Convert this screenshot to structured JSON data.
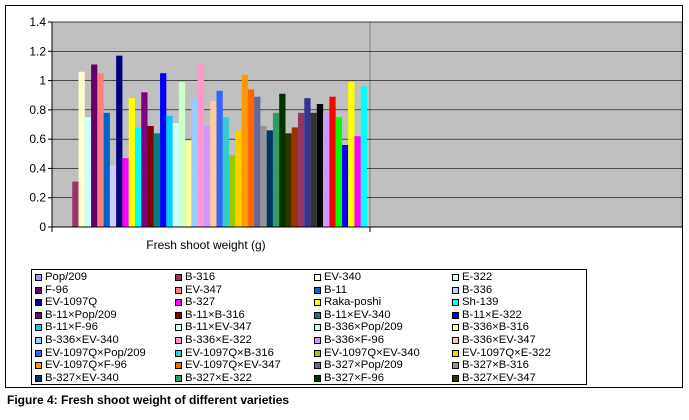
{
  "caption": "Figure 4: Fresh shoot weight of different varieties",
  "chart_data": {
    "type": "bar",
    "title": "",
    "xlabel": "Fresh shoot weight (g)",
    "ylabel": "",
    "categories": [
      "Fresh shoot weight (g)"
    ],
    "ylim": [
      0,
      1.4
    ],
    "yticks": [
      "0",
      "0.2",
      "0.4",
      "0.6",
      "0.8",
      "1",
      "1.2",
      "1.4"
    ],
    "grid": true,
    "legend_position": "bottom",
    "plot_background": "#c0c0c0",
    "series": [
      {
        "name": "Pop/209",
        "value": 0.0,
        "color": "#9999ff"
      },
      {
        "name": "B-316",
        "value": 0.31,
        "color": "#993366"
      },
      {
        "name": "EV-340",
        "value": 1.06,
        "color": "#ffffcc"
      },
      {
        "name": "E-322",
        "value": 0.75,
        "color": "#ccffff"
      },
      {
        "name": "F-96",
        "value": 1.11,
        "color": "#660066"
      },
      {
        "name": "EV-347",
        "value": 1.05,
        "color": "#ff8080"
      },
      {
        "name": "B-11",
        "value": 0.78,
        "color": "#0066cc"
      },
      {
        "name": "B-336",
        "value": 0.42,
        "color": "#ccccff"
      },
      {
        "name": "EV-1097Q",
        "value": 1.17,
        "color": "#000080"
      },
      {
        "name": "B-327",
        "value": 0.47,
        "color": "#ff00ff"
      },
      {
        "name": "Raka-poshi",
        "value": 0.88,
        "color": "#ffff00"
      },
      {
        "name": "Sh-139",
        "value": 0.68,
        "color": "#00ffff"
      },
      {
        "name": "B-11×Pop/209",
        "value": 0.92,
        "color": "#800080"
      },
      {
        "name": "B-11×B-316",
        "value": 0.69,
        "color": "#800000"
      },
      {
        "name": "B-11×EV-340",
        "value": 0.64,
        "color": "#008080"
      },
      {
        "name": "B-11×E-322",
        "value": 1.05,
        "color": "#0000ff"
      },
      {
        "name": "B-11×F-96",
        "value": 0.76,
        "color": "#00ccff"
      },
      {
        "name": "B-11×EV-347",
        "value": 0.71,
        "color": "#ccffff"
      },
      {
        "name": "B-336×Pop/209",
        "value": 0.99,
        "color": "#ccffcc"
      },
      {
        "name": "B-336×B-316",
        "value": 0.59,
        "color": "#ffff99"
      },
      {
        "name": "B-336×EV-340",
        "value": 0.88,
        "color": "#99ccff"
      },
      {
        "name": "B-336×E-322",
        "value": 1.12,
        "color": "#ff99cc"
      },
      {
        "name": "B-336×F-96",
        "value": 0.69,
        "color": "#cc99ff"
      },
      {
        "name": "B-336×EV-347",
        "value": 0.86,
        "color": "#ffcc99"
      },
      {
        "name": "EV-1097Q×Pop/209",
        "value": 0.93,
        "color": "#3366ff"
      },
      {
        "name": "EV-1097Q×B-316",
        "value": 0.75,
        "color": "#33cccc"
      },
      {
        "name": "EV-1097Q×EV-340",
        "value": 0.49,
        "color": "#99cc00"
      },
      {
        "name": "EV-1097Q×E-322",
        "value": 0.66,
        "color": "#ffcc00"
      },
      {
        "name": "EV-1097Q×F-96",
        "value": 1.04,
        "color": "#ff9900"
      },
      {
        "name": "EV-1097Q×EV-347",
        "value": 0.94,
        "color": "#ff6600"
      },
      {
        "name": "B-327×Pop/209",
        "value": 0.89,
        "color": "#666699"
      },
      {
        "name": "B-327×B-316",
        "value": 0.69,
        "color": "#969696"
      },
      {
        "name": "B-327×EV-340",
        "value": 0.66,
        "color": "#003366"
      },
      {
        "name": "B-327×E-322",
        "value": 0.78,
        "color": "#339966"
      },
      {
        "name": "B-327×F-96",
        "value": 0.91,
        "color": "#003300"
      },
      {
        "name": "B-327×EV-347",
        "value": 0.64,
        "color": "#333300"
      },
      {
        "name": "",
        "value": 0.68,
        "color": "#993300"
      },
      {
        "name": "",
        "value": 0.78,
        "color": "#993366"
      },
      {
        "name": "",
        "value": 0.88,
        "color": "#333399"
      },
      {
        "name": "",
        "value": 0.78,
        "color": "#333333"
      },
      {
        "name": "",
        "value": 0.84,
        "color": "#000000"
      },
      {
        "name": "",
        "value": 0.78,
        "color": "#cc99ff"
      },
      {
        "name": "",
        "value": 0.89,
        "color": "#ff0000"
      },
      {
        "name": "",
        "value": 0.75,
        "color": "#00ff00"
      },
      {
        "name": "",
        "value": 0.56,
        "color": "#0000ff"
      },
      {
        "name": "",
        "value": 0.99,
        "color": "#ffff00"
      },
      {
        "name": "",
        "value": 0.62,
        "color": "#ff00ff"
      },
      {
        "name": "",
        "value": 0.96,
        "color": "#00ffff"
      }
    ]
  }
}
